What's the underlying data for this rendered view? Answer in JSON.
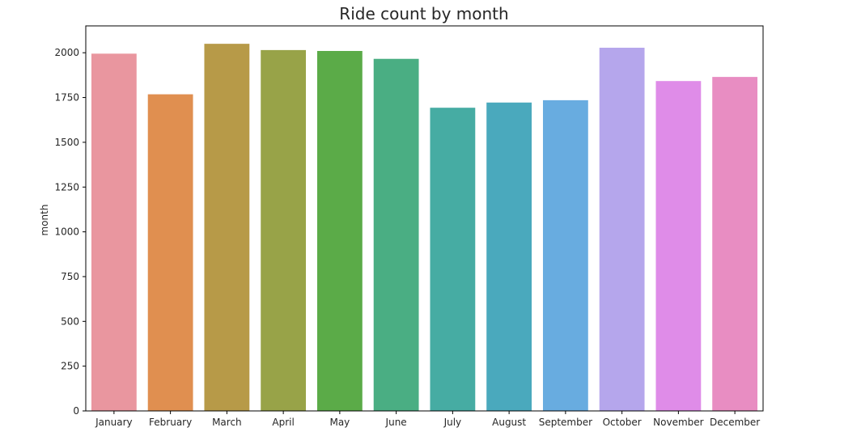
{
  "chart_data": {
    "type": "bar",
    "title": "Ride count by month",
    "xlabel": "",
    "ylabel": "month",
    "categories": [
      "January",
      "February",
      "March",
      "April",
      "May",
      "June",
      "July",
      "August",
      "September",
      "October",
      "November",
      "December"
    ],
    "values": [
      1995,
      1768,
      2050,
      2015,
      2010,
      1966,
      1693,
      1722,
      1735,
      2028,
      1842,
      1865
    ],
    "colors": [
      "#e9969f",
      "#e08f50",
      "#b79a48",
      "#98a348",
      "#5bab48",
      "#4aae83",
      "#46aca3",
      "#4aa9bd",
      "#68ace0",
      "#b5a6ec",
      "#df8ce8",
      "#e88dc2"
    ],
    "ylim": [
      0,
      2150
    ],
    "yticks": [
      0,
      250,
      500,
      750,
      1000,
      1250,
      1500,
      1750,
      2000
    ],
    "grid": false
  }
}
